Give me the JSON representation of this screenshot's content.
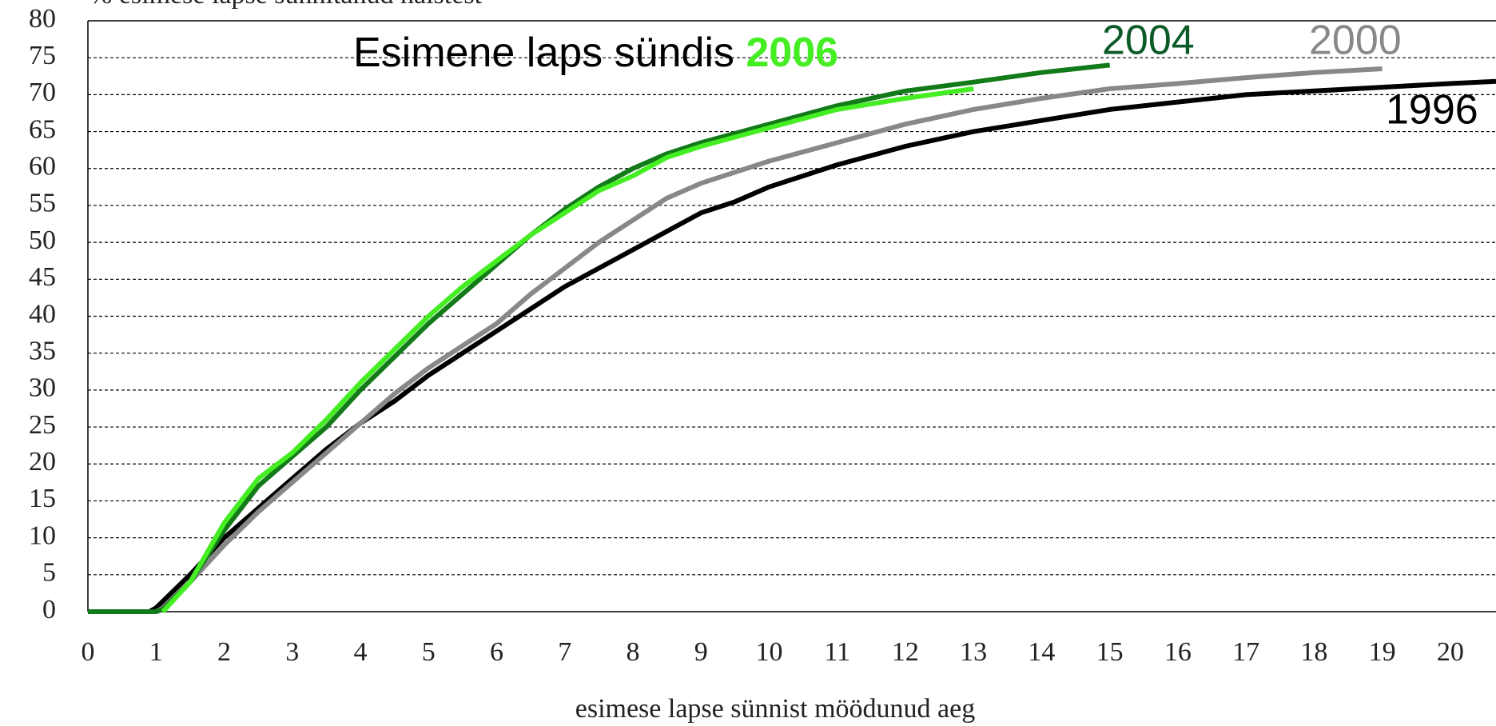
{
  "chart_data": {
    "type": "line",
    "ylabel": "% esimese lapse sünnitanud naistest",
    "xlabel": "esimese lapse sünnist möödunud aeg",
    "annotation": "Esimene laps sündis",
    "xlim": [
      0,
      20.67
    ],
    "ylim": [
      0,
      80
    ],
    "xticks": [
      0,
      1,
      2,
      3,
      4,
      5,
      6,
      7,
      8,
      9,
      10,
      11,
      12,
      13,
      14,
      15,
      16,
      17,
      18,
      19,
      20
    ],
    "yticks": [
      0,
      5,
      10,
      15,
      20,
      25,
      30,
      35,
      40,
      45,
      50,
      55,
      60,
      65,
      70,
      75,
      80
    ],
    "grid": true,
    "series": [
      {
        "name": "1996",
        "color": "#000000",
        "x": [
          0,
          0.9,
          1,
          1.5,
          2,
          2.5,
          3,
          3.5,
          4,
          4.5,
          5,
          5.5,
          6,
          6.5,
          7,
          7.5,
          8,
          8.5,
          9,
          9.5,
          10,
          11,
          12,
          13,
          14,
          15,
          16,
          17,
          18,
          19,
          20,
          20.67
        ],
        "values": [
          0,
          0,
          0.5,
          5,
          10,
          14,
          18,
          22,
          25.5,
          28.5,
          32,
          35,
          38,
          41,
          44,
          46.5,
          49,
          51.5,
          54,
          55.5,
          57.5,
          60.5,
          63,
          65,
          66.5,
          68,
          69,
          70,
          70.5,
          71,
          71.5,
          71.8
        ]
      },
      {
        "name": "2000",
        "color": "#888888",
        "x": [
          0,
          1,
          1.1,
          1.5,
          2,
          2.5,
          3,
          3.5,
          4,
          4.5,
          5,
          5.5,
          6,
          6.5,
          7,
          7.5,
          8,
          8.5,
          9,
          10,
          11,
          12,
          13,
          14,
          15,
          16,
          17,
          18,
          19
        ],
        "values": [
          0,
          0,
          0.5,
          4,
          9,
          13.5,
          17.5,
          21.5,
          25.5,
          29.5,
          33,
          36,
          39,
          43,
          46.5,
          50,
          53,
          56,
          58,
          61,
          63.5,
          66,
          68,
          69.5,
          70.8,
          71.5,
          72.3,
          73,
          73.5
        ]
      },
      {
        "name": "2004",
        "color": "#137a1a",
        "x": [
          0,
          1,
          1.1,
          1.5,
          2,
          2.5,
          3,
          3.5,
          4,
          4.5,
          5,
          5.5,
          6,
          6.5,
          7,
          7.5,
          8,
          8.5,
          9,
          10,
          11,
          12,
          13,
          14,
          15
        ],
        "values": [
          0,
          0,
          0.3,
          4,
          11,
          17,
          21,
          25,
          30,
          34.5,
          39,
          43,
          47,
          51,
          54.5,
          57.5,
          60,
          62,
          63.5,
          66,
          68.5,
          70.5,
          71.7,
          73,
          74
        ]
      },
      {
        "name": "2006",
        "color": "#44ee22",
        "x": [
          1.1,
          1.5,
          2,
          2.5,
          3,
          3.5,
          4,
          4.5,
          5,
          5.5,
          6,
          6.5,
          7,
          7.5,
          8,
          8.5,
          9,
          10,
          11,
          12,
          13
        ],
        "values": [
          0,
          4,
          12,
          18,
          21.5,
          26,
          31,
          35.5,
          40,
          44,
          47.5,
          51,
          54,
          57,
          59,
          61.5,
          63,
          65.5,
          68,
          69.5,
          70.8
        ]
      }
    ]
  }
}
